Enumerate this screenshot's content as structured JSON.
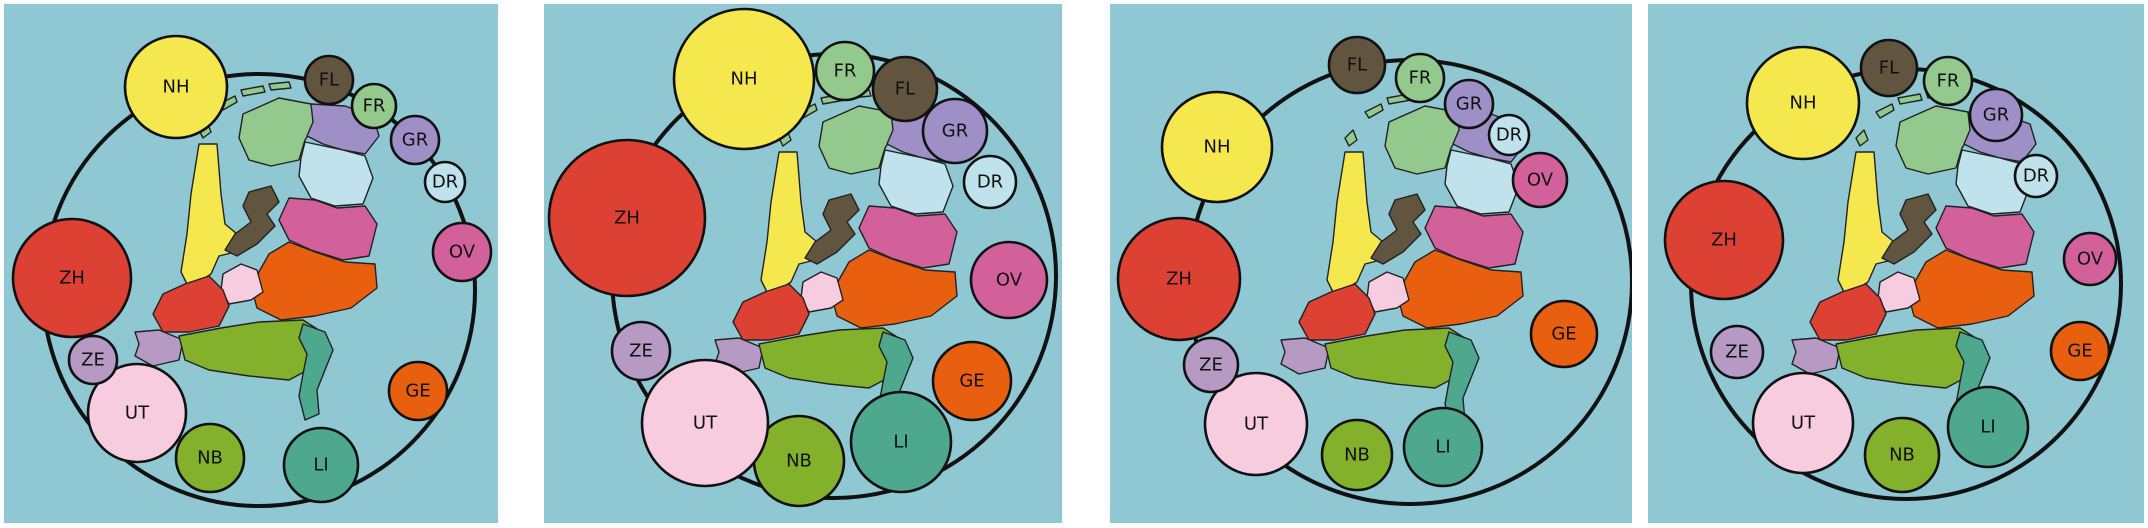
{
  "background_color": "#8fc7d3",
  "provinces": [
    {
      "code": "NH",
      "name": "Noord-Holland",
      "color": "#f5e84f"
    },
    {
      "code": "ZH",
      "name": "Zuid-Holland",
      "color": "#dd4133"
    },
    {
      "code": "FL",
      "name": "Flevoland",
      "color": "#62553f"
    },
    {
      "code": "FR",
      "name": "Friesland",
      "color": "#93c98d"
    },
    {
      "code": "GR",
      "name": "Groningen",
      "color": "#9e8fc7"
    },
    {
      "code": "DR",
      "name": "Drenthe",
      "color": "#bfe2ec"
    },
    {
      "code": "OV",
      "name": "Overijssel",
      "color": "#d2609b"
    },
    {
      "code": "GE",
      "name": "Gelderland",
      "color": "#e8600f"
    },
    {
      "code": "LI",
      "name": "Limburg",
      "color": "#4ea88e"
    },
    {
      "code": "NB",
      "name": "Noord-Brabant",
      "color": "#84b12c"
    },
    {
      "code": "UT",
      "name": "Utrecht",
      "color": "#f7ccdf"
    },
    {
      "code": "ZE",
      "name": "Zeeland",
      "color": "#b69ac3"
    }
  ],
  "panels": [
    {
      "bubbles": [
        "NH",
        "FL",
        "FR",
        "GR",
        "DR",
        "OV",
        "GE",
        "LI",
        "NB",
        "UT",
        "ZE",
        "ZH"
      ]
    },
    {
      "bubbles": [
        "NH",
        "FR",
        "FL",
        "GR",
        "DR",
        "OV",
        "GE",
        "LI",
        "NB",
        "UT",
        "ZE",
        "ZH"
      ]
    },
    {
      "bubbles": [
        "FL",
        "FR",
        "GR",
        "DR",
        "OV",
        "GE",
        "LI",
        "NB",
        "UT",
        "ZE",
        "ZH",
        "NH"
      ]
    },
    {
      "bubbles": [
        "FL",
        "FR",
        "GR",
        "DR",
        "OV",
        "GE",
        "LI",
        "NB",
        "UT",
        "ZE",
        "ZH",
        "NH"
      ]
    }
  ]
}
